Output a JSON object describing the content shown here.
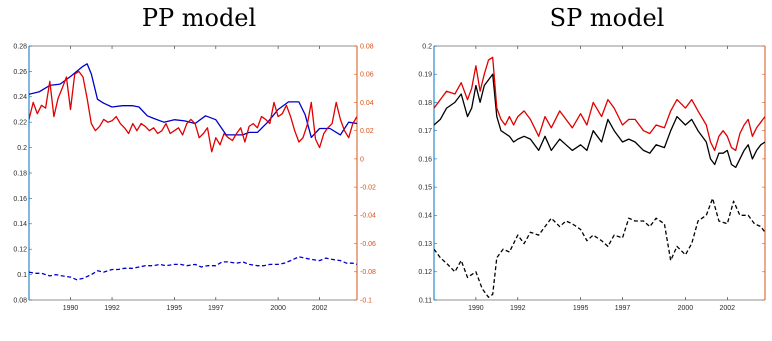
{
  "chart_data": [
    {
      "type": "line",
      "title": "PP model",
      "xlim": [
        1988.0,
        2003.8
      ],
      "xticks": [
        "1990",
        "1992",
        "1995",
        "1997",
        "2000",
        "2002"
      ],
      "ylim_left": [
        0.08,
        0.28
      ],
      "yticks_left": [
        "0.28",
        "0.26",
        "0.24",
        "0.22",
        "0.2",
        "0.18",
        "0.16",
        "0.14",
        "0.12",
        "0.1",
        "0.08"
      ],
      "ylim_right": [
        -0.1,
        0.08
      ],
      "yticks_right": [
        "0.08",
        "0.06",
        "0.04",
        "0.02",
        "0",
        "-0.02",
        "-0.04",
        "-0.06",
        "-0.08",
        "-0.1"
      ],
      "colors": {
        "left_axis": "#0072bd",
        "right_axis": "#d95319"
      },
      "series": [
        {
          "color": "#0000cc",
          "style": "solid",
          "axis": "left",
          "x": [
            1988.0,
            1988.5,
            1989.0,
            1989.5,
            1990.0,
            1990.3,
            1990.6,
            1990.8,
            1991.0,
            1991.3,
            1991.6,
            1992.0,
            1992.5,
            1993.0,
            1993.3,
            1993.7,
            1994.0,
            1994.5,
            1995.0,
            1995.5,
            1996.0,
            1996.5,
            1997.0,
            1997.5,
            1998.0,
            1998.3,
            1998.6,
            1999.0,
            1999.5,
            2000.0,
            2000.5,
            2001.0,
            2001.3,
            2001.6,
            2002.0,
            2002.5,
            2003.0,
            2003.4,
            2003.8
          ],
          "y": [
            0.242,
            0.244,
            0.249,
            0.25,
            0.256,
            0.26,
            0.264,
            0.266,
            0.258,
            0.238,
            0.235,
            0.232,
            0.233,
            0.233,
            0.232,
            0.225,
            0.223,
            0.22,
            0.222,
            0.221,
            0.219,
            0.225,
            0.222,
            0.21,
            0.21,
            0.21,
            0.212,
            0.212,
            0.22,
            0.23,
            0.236,
            0.236,
            0.226,
            0.208,
            0.215,
            0.215,
            0.21,
            0.22,
            0.219
          ]
        },
        {
          "color": "#e00000",
          "style": "solid",
          "axis": "right",
          "x": [
            1988.0,
            1988.2,
            1988.4,
            1988.6,
            1988.8,
            1989.0,
            1989.2,
            1989.4,
            1989.6,
            1989.8,
            1990.0,
            1990.2,
            1990.4,
            1990.6,
            1990.8,
            1991.0,
            1991.2,
            1991.4,
            1991.6,
            1991.8,
            1992.0,
            1992.2,
            1992.4,
            1992.6,
            1992.8,
            1993.0,
            1993.2,
            1993.4,
            1993.6,
            1993.8,
            1994.0,
            1994.2,
            1994.4,
            1994.6,
            1994.8,
            1995.0,
            1995.2,
            1995.4,
            1995.6,
            1995.8,
            1996.0,
            1996.2,
            1996.4,
            1996.6,
            1996.8,
            1997.0,
            1997.2,
            1997.4,
            1997.6,
            1997.8,
            1998.0,
            1998.2,
            1998.4,
            1998.6,
            1998.8,
            1999.0,
            1999.2,
            1999.4,
            1999.6,
            1999.8,
            2000.0,
            2000.2,
            2000.4,
            2000.6,
            2000.8,
            2001.0,
            2001.2,
            2001.4,
            2001.6,
            2001.8,
            2002.0,
            2002.2,
            2002.4,
            2002.6,
            2002.8,
            2003.0,
            2003.2,
            2003.4,
            2003.6,
            2003.8
          ],
          "y": [
            0.028,
            0.04,
            0.032,
            0.038,
            0.036,
            0.055,
            0.03,
            0.043,
            0.05,
            0.058,
            0.035,
            0.06,
            0.062,
            0.058,
            0.043,
            0.025,
            0.02,
            0.023,
            0.028,
            0.026,
            0.027,
            0.03,
            0.025,
            0.022,
            0.018,
            0.025,
            0.02,
            0.025,
            0.023,
            0.02,
            0.022,
            0.018,
            0.02,
            0.025,
            0.018,
            0.02,
            0.022,
            0.017,
            0.025,
            0.028,
            0.025,
            0.015,
            0.018,
            0.022,
            0.005,
            0.015,
            0.01,
            0.018,
            0.015,
            0.013,
            0.018,
            0.022,
            0.012,
            0.023,
            0.025,
            0.022,
            0.03,
            0.028,
            0.025,
            0.04,
            0.03,
            0.032,
            0.038,
            0.03,
            0.02,
            0.012,
            0.015,
            0.024,
            0.04,
            0.014,
            0.008,
            0.018,
            0.022,
            0.025,
            0.04,
            0.028,
            0.02,
            0.015,
            0.025,
            0.03
          ]
        },
        {
          "color": "#0000cc",
          "style": "dashed",
          "axis": "left",
          "x": [
            1988.0,
            1988.3,
            1988.6,
            1989.0,
            1989.3,
            1989.6,
            1990.0,
            1990.3,
            1990.6,
            1991.0,
            1991.3,
            1991.6,
            1992.0,
            1992.3,
            1992.6,
            1993.0,
            1993.3,
            1993.6,
            1994.0,
            1994.3,
            1994.6,
            1995.0,
            1995.3,
            1995.6,
            1996.0,
            1996.3,
            1996.6,
            1997.0,
            1997.3,
            1997.6,
            1998.0,
            1998.3,
            1998.6,
            1999.0,
            1999.3,
            1999.6,
            2000.0,
            2000.3,
            2000.6,
            2001.0,
            2001.3,
            2001.6,
            2002.0,
            2002.3,
            2002.6,
            2003.0,
            2003.3,
            2003.6,
            2003.8
          ],
          "y": [
            0.102,
            0.101,
            0.101,
            0.099,
            0.1,
            0.099,
            0.098,
            0.096,
            0.097,
            0.1,
            0.103,
            0.102,
            0.104,
            0.104,
            0.105,
            0.105,
            0.106,
            0.107,
            0.107,
            0.108,
            0.107,
            0.108,
            0.108,
            0.107,
            0.108,
            0.106,
            0.107,
            0.107,
            0.11,
            0.11,
            0.109,
            0.11,
            0.108,
            0.107,
            0.107,
            0.108,
            0.108,
            0.109,
            0.111,
            0.114,
            0.113,
            0.112,
            0.111,
            0.113,
            0.112,
            0.111,
            0.109,
            0.109,
            0.108
          ]
        }
      ]
    },
    {
      "type": "line",
      "title": "SP model",
      "xlim": [
        1988.0,
        2003.8
      ],
      "xticks": [
        "1990",
        "1992",
        "1995",
        "1997",
        "2000",
        "2002"
      ],
      "ylim_left": [
        0.11,
        0.2
      ],
      "yticks_left": [
        "0.2",
        "0.19",
        "0.18",
        "0.17",
        "0.16",
        "0.15",
        "0.14",
        "0.13",
        "0.12",
        "0.11"
      ],
      "colors": {
        "left_axis": "#0072bd",
        "right_axis": "#d95319"
      },
      "series": [
        {
          "color": "#000000",
          "style": "solid",
          "axis": "left",
          "x": [
            1988.0,
            1988.3,
            1988.6,
            1989.0,
            1989.3,
            1989.6,
            1989.8,
            1990.0,
            1990.2,
            1990.4,
            1990.6,
            1990.8,
            1991.0,
            1991.2,
            1991.4,
            1991.6,
            1991.8,
            1992.0,
            1992.3,
            1992.6,
            1993.0,
            1993.3,
            1993.6,
            1994.0,
            1994.3,
            1994.6,
            1995.0,
            1995.3,
            1995.6,
            1996.0,
            1996.3,
            1996.6,
            1997.0,
            1997.3,
            1997.6,
            1998.0,
            1998.3,
            1998.6,
            1999.0,
            1999.3,
            1999.6,
            2000.0,
            2000.3,
            2000.6,
            2001.0,
            2001.2,
            2001.4,
            2001.6,
            2001.8,
            2002.0,
            2002.2,
            2002.4,
            2002.6,
            2002.8,
            2003.0,
            2003.2,
            2003.4,
            2003.6,
            2003.8
          ],
          "y": [
            0.172,
            0.174,
            0.178,
            0.18,
            0.183,
            0.175,
            0.178,
            0.186,
            0.18,
            0.186,
            0.188,
            0.19,
            0.175,
            0.17,
            0.169,
            0.168,
            0.166,
            0.167,
            0.168,
            0.167,
            0.163,
            0.168,
            0.163,
            0.167,
            0.165,
            0.163,
            0.165,
            0.163,
            0.17,
            0.166,
            0.174,
            0.17,
            0.166,
            0.167,
            0.166,
            0.163,
            0.162,
            0.165,
            0.164,
            0.17,
            0.175,
            0.172,
            0.174,
            0.17,
            0.166,
            0.16,
            0.158,
            0.162,
            0.162,
            0.163,
            0.158,
            0.157,
            0.16,
            0.163,
            0.165,
            0.16,
            0.163,
            0.165,
            0.166
          ]
        },
        {
          "color": "#e00000",
          "style": "solid",
          "axis": "left",
          "x": [
            1988.0,
            1988.3,
            1988.6,
            1989.0,
            1989.3,
            1989.6,
            1989.8,
            1990.0,
            1990.2,
            1990.4,
            1990.6,
            1990.8,
            1991.0,
            1991.2,
            1991.4,
            1991.6,
            1991.8,
            1992.0,
            1992.3,
            1992.6,
            1993.0,
            1993.3,
            1993.6,
            1994.0,
            1994.3,
            1994.6,
            1995.0,
            1995.3,
            1995.6,
            1996.0,
            1996.3,
            1996.6,
            1997.0,
            1997.3,
            1997.6,
            1998.0,
            1998.3,
            1998.6,
            1999.0,
            1999.3,
            1999.6,
            2000.0,
            2000.3,
            2000.6,
            2001.0,
            2001.2,
            2001.4,
            2001.6,
            2001.8,
            2002.0,
            2002.2,
            2002.4,
            2002.6,
            2002.8,
            2003.0,
            2003.2,
            2003.4,
            2003.6,
            2003.8
          ],
          "y": [
            0.178,
            0.181,
            0.184,
            0.183,
            0.187,
            0.181,
            0.185,
            0.193,
            0.184,
            0.19,
            0.195,
            0.196,
            0.178,
            0.174,
            0.172,
            0.175,
            0.172,
            0.175,
            0.177,
            0.174,
            0.168,
            0.175,
            0.171,
            0.177,
            0.174,
            0.171,
            0.176,
            0.172,
            0.18,
            0.175,
            0.181,
            0.178,
            0.172,
            0.174,
            0.174,
            0.17,
            0.169,
            0.172,
            0.171,
            0.177,
            0.181,
            0.178,
            0.181,
            0.177,
            0.172,
            0.166,
            0.163,
            0.168,
            0.17,
            0.168,
            0.164,
            0.163,
            0.169,
            0.172,
            0.174,
            0.168,
            0.171,
            0.173,
            0.175
          ]
        },
        {
          "color": "#000000",
          "style": "dashed",
          "axis": "left",
          "x": [
            1988.0,
            1988.3,
            1988.6,
            1989.0,
            1989.3,
            1989.6,
            1990.0,
            1990.3,
            1990.6,
            1990.8,
            1991.0,
            1991.3,
            1991.6,
            1992.0,
            1992.3,
            1992.6,
            1993.0,
            1993.3,
            1993.6,
            1994.0,
            1994.3,
            1994.6,
            1995.0,
            1995.3,
            1995.6,
            1996.0,
            1996.3,
            1996.6,
            1997.0,
            1997.3,
            1997.6,
            1998.0,
            1998.3,
            1998.6,
            1999.0,
            1999.3,
            1999.6,
            2000.0,
            2000.3,
            2000.6,
            2001.0,
            2001.3,
            2001.6,
            2002.0,
            2002.3,
            2002.6,
            2003.0,
            2003.3,
            2003.6,
            2003.8
          ],
          "y": [
            0.128,
            0.125,
            0.123,
            0.12,
            0.124,
            0.118,
            0.12,
            0.114,
            0.111,
            0.112,
            0.125,
            0.128,
            0.127,
            0.133,
            0.13,
            0.134,
            0.133,
            0.136,
            0.139,
            0.136,
            0.138,
            0.137,
            0.135,
            0.131,
            0.133,
            0.131,
            0.129,
            0.133,
            0.132,
            0.139,
            0.138,
            0.138,
            0.136,
            0.139,
            0.137,
            0.124,
            0.129,
            0.126,
            0.13,
            0.138,
            0.14,
            0.146,
            0.138,
            0.137,
            0.145,
            0.14,
            0.14,
            0.137,
            0.136,
            0.134
          ]
        }
      ]
    }
  ]
}
